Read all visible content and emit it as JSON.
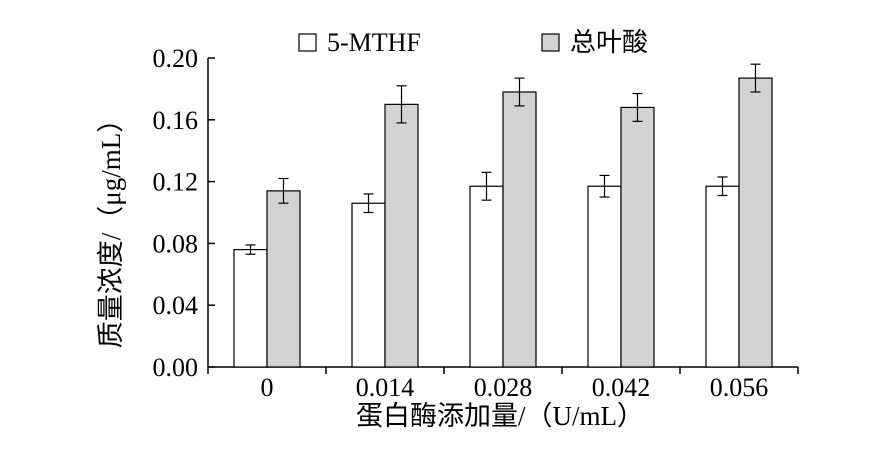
{
  "chart_data": {
    "type": "bar",
    "title": "",
    "xlabel": "蛋白酶添加量/（U/mL）",
    "ylabel": "质量浓度/（μg/mL）",
    "categories": [
      "0",
      "0.014",
      "0.028",
      "0.042",
      "0.056"
    ],
    "ylim": [
      0,
      0.2
    ],
    "yticks": [
      "0.00",
      "0.04",
      "0.08",
      "0.12",
      "0.16",
      "0.20"
    ],
    "ytick_values": [
      0,
      0.04,
      0.08,
      0.12,
      0.16,
      0.2
    ],
    "grid": false,
    "legend_position": "top",
    "series": [
      {
        "name": "5-MTHF",
        "color": "#ffffff",
        "values": [
          0.076,
          0.106,
          0.117,
          0.117,
          0.117
        ],
        "errors": [
          0.003,
          0.006,
          0.009,
          0.007,
          0.006
        ]
      },
      {
        "name": "总叶酸",
        "color": "#d3d3d3",
        "values": [
          0.114,
          0.17,
          0.178,
          0.168,
          0.187
        ],
        "errors": [
          0.008,
          0.012,
          0.009,
          0.009,
          0.009
        ]
      }
    ]
  }
}
